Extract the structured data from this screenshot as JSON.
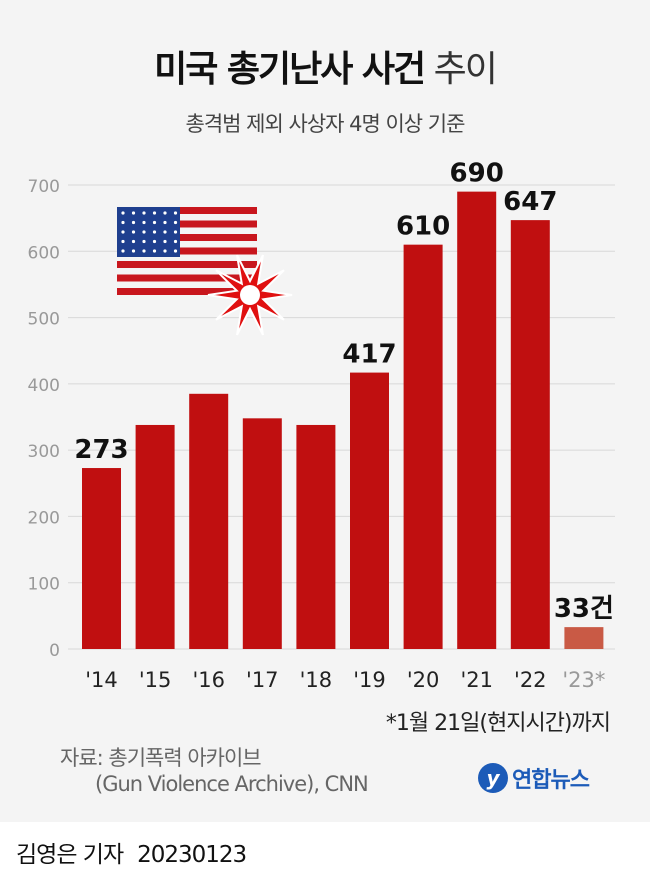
{
  "title": {
    "bold": "미국 총기난사 사건",
    "light": "추이"
  },
  "subtitle": "총격범 제외 사상자 4명 이상 기준",
  "chart_data": {
    "type": "bar",
    "title": "미국 총기난사 사건 추이",
    "subtitle": "총격범 제외 사상자 4명 이상 기준",
    "categories": [
      "'14",
      "'15",
      "'16",
      "'17",
      "'18",
      "'19",
      "'20",
      "'21",
      "'22",
      "'23*"
    ],
    "values": [
      273,
      338,
      385,
      348,
      338,
      417,
      610,
      690,
      647,
      33
    ],
    "data_labels": {
      "0": "273",
      "5": "417",
      "6": "610",
      "7": "690",
      "8": "647",
      "9": "33건"
    },
    "yticks": [
      0,
      100,
      200,
      300,
      400,
      500,
      600,
      700
    ],
    "ylim": [
      0,
      700
    ],
    "grid": true,
    "colors": {
      "bar": "#c00f10",
      "last": "#c95a45",
      "grid": "#d8d8d8"
    },
    "xlabel": "",
    "ylabel": ""
  },
  "note": "*1월 21일(현지시간)까지",
  "source": {
    "line1": "자료: 총기폭력 아카이브",
    "line2": "(Gun Violence Archive), CNN"
  },
  "logo": {
    "mark": "y",
    "text": "연합뉴스"
  },
  "footer": {
    "reporter": "김영은 기자",
    "date": "20230123"
  }
}
